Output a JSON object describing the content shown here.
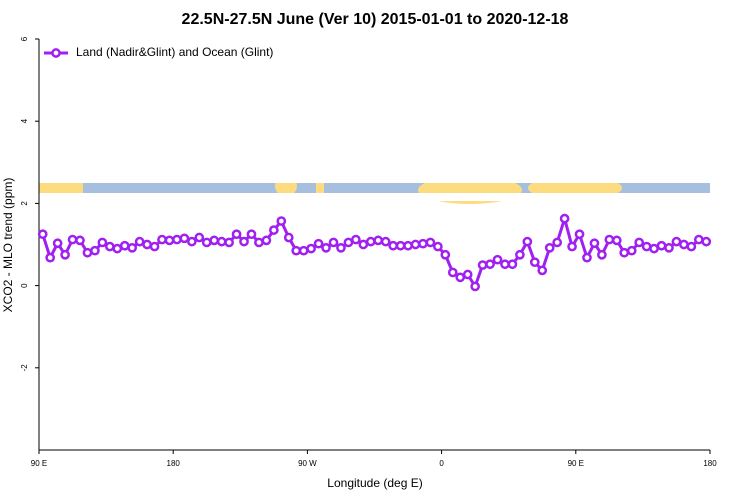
{
  "chart_data": {
    "type": "line",
    "title": "22.5N-27.5N June (Ver 10)   2015-01-01 to 2020-12-18",
    "xlabel": "Longitude (deg E)",
    "ylabel": "XCO2 - MLO trend (ppm)",
    "x": [
      92.5,
      97.5,
      102.5,
      107.5,
      112.5,
      117.5,
      122.5,
      127.5,
      132.5,
      137.5,
      142.5,
      147.5,
      152.5,
      157.5,
      162.5,
      167.5,
      172.5,
      177.5,
      182.5,
      187.5,
      192.5,
      197.5,
      202.5,
      207.5,
      212.5,
      217.5,
      222.5,
      227.5,
      232.5,
      237.5,
      242.5,
      247.5,
      252.5,
      257.5,
      262.5,
      267.5,
      272.5,
      277.5,
      282.5,
      287.5,
      292.5,
      297.5,
      302.5,
      307.5,
      312.5,
      317.5,
      322.5,
      327.5,
      332.5,
      337.5,
      342.5,
      347.5,
      352.5,
      357.5,
      362.5,
      367.5,
      372.5,
      377.5,
      382.5,
      387.5,
      392.5,
      397.5,
      402.5,
      407.5,
      412.5,
      417.5,
      422.5,
      427.5,
      432.5,
      437.5,
      442.5,
      447.5,
      452.5,
      457.5,
      462.5,
      467.5,
      472.5,
      477.5,
      482.5,
      487.5,
      492.5,
      497.5,
      502.5,
      507.5,
      512.5,
      517.5,
      522.5,
      527.5,
      532.5,
      537.5
    ],
    "series": [
      {
        "name": "Land (Nadir&Glint) and Ocean (Glint)",
        "color": "#a020f0",
        "values": [
          1.25,
          0.68,
          1.03,
          0.75,
          1.12,
          1.1,
          0.8,
          0.85,
          1.05,
          0.95,
          0.9,
          0.97,
          0.92,
          1.07,
          1.0,
          0.95,
          1.12,
          1.1,
          1.12,
          1.15,
          1.07,
          1.17,
          1.05,
          1.1,
          1.07,
          1.05,
          1.25,
          1.07,
          1.25,
          1.05,
          1.1,
          1.35,
          1.57,
          1.17,
          0.85,
          0.85,
          0.9,
          1.02,
          0.92,
          1.05,
          0.92,
          1.05,
          1.12,
          1.0,
          1.07,
          1.1,
          1.07,
          0.97,
          0.97,
          0.97,
          1.0,
          1.02,
          1.05,
          0.95,
          0.75,
          0.32,
          0.2,
          0.27,
          -0.02,
          0.5,
          0.52,
          0.63,
          0.52,
          0.52,
          0.75,
          1.07,
          0.57,
          0.37,
          0.92,
          1.05,
          1.63,
          0.95,
          1.25,
          0.68,
          1.03,
          0.75,
          1.12,
          1.1,
          0.8,
          0.85,
          1.05,
          0.95,
          0.9,
          0.97,
          0.92,
          1.07,
          1.0,
          0.95,
          1.12,
          1.07
        ]
      }
    ],
    "xlim": [
      90,
      540
    ],
    "xticks": [
      {
        "value": 90,
        "label": "90 E"
      },
      {
        "value": 180,
        "label": "180"
      },
      {
        "value": 270,
        "label": "90 W"
      },
      {
        "value": 360,
        "label": "0"
      },
      {
        "value": 450,
        "label": "90 E"
      },
      {
        "value": 540,
        "label": "180"
      }
    ],
    "ylim": [
      -4,
      6
    ],
    "yticks": [
      6,
      4,
      2,
      0,
      -2
    ],
    "legend": "top-left"
  }
}
